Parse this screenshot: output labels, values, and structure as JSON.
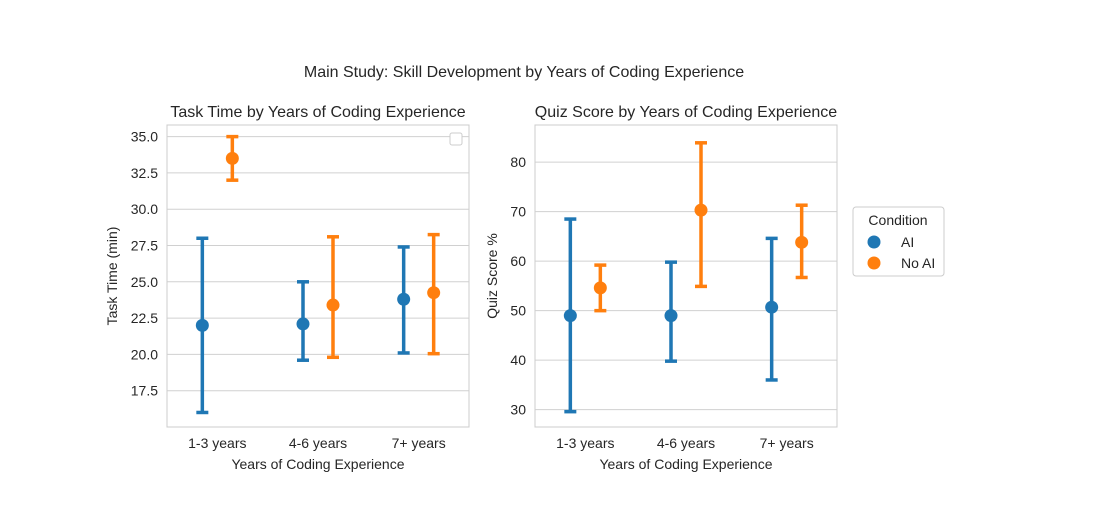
{
  "suptitle": "Main Study: Skill Development by Years of Coding Experience",
  "colors": {
    "AI": "#1f77b4",
    "No AI": "#ff7f0e",
    "grid": "#d0d0d0",
    "axes": "#cccccc",
    "text": "#262626"
  },
  "legend": {
    "title": "Condition",
    "entries": [
      "AI",
      "No AI"
    ]
  },
  "chart_data": [
    {
      "type": "pointplot",
      "title": "Task Time by Years of Coding Experience",
      "xlabel": "Years of Coding Experience",
      "ylabel": "Task Time (min)",
      "categories": [
        "1-3 years",
        "4-6 years",
        "7+ years"
      ],
      "ylim": [
        15.0,
        35.8
      ],
      "yticks": [
        17.5,
        20.0,
        22.5,
        25.0,
        27.5,
        30.0,
        32.5,
        35.0
      ],
      "ytick_labels": [
        "17.5",
        "20.0",
        "22.5",
        "25.0",
        "27.5",
        "30.0",
        "32.5",
        "35.0"
      ],
      "grid": true,
      "legend": "empty box, top-right",
      "series": [
        {
          "name": "AI",
          "values": [
            22.0,
            22.1,
            23.8
          ],
          "ci_low": [
            16.0,
            19.6,
            20.1
          ],
          "ci_high": [
            28.0,
            25.0,
            27.4
          ]
        },
        {
          "name": "No AI",
          "values": [
            33.5,
            23.4,
            24.25
          ],
          "ci_low": [
            32.0,
            19.8,
            20.05
          ],
          "ci_high": [
            35.0,
            28.1,
            28.25
          ]
        }
      ]
    },
    {
      "type": "pointplot",
      "title": "Quiz Score by Years of Coding Experience",
      "xlabel": "Years of Coding Experience",
      "ylabel": "Quiz Score %",
      "categories": [
        "1-3 years",
        "4-6 years",
        "7+ years"
      ],
      "ylim": [
        26.5,
        87.5
      ],
      "yticks": [
        30,
        40,
        50,
        60,
        70,
        80
      ],
      "ytick_labels": [
        "30",
        "40",
        "50",
        "60",
        "70",
        "80"
      ],
      "grid": true,
      "legend": "outside right",
      "series": [
        {
          "name": "AI",
          "values": [
            49.0,
            49.0,
            50.7
          ],
          "ci_low": [
            29.6,
            39.8,
            36.0
          ],
          "ci_high": [
            68.5,
            59.8,
            64.6
          ]
        },
        {
          "name": "No AI",
          "values": [
            54.6,
            70.3,
            63.8
          ],
          "ci_low": [
            50.0,
            54.9,
            56.7
          ],
          "ci_high": [
            59.2,
            83.9,
            71.3
          ]
        }
      ]
    }
  ]
}
